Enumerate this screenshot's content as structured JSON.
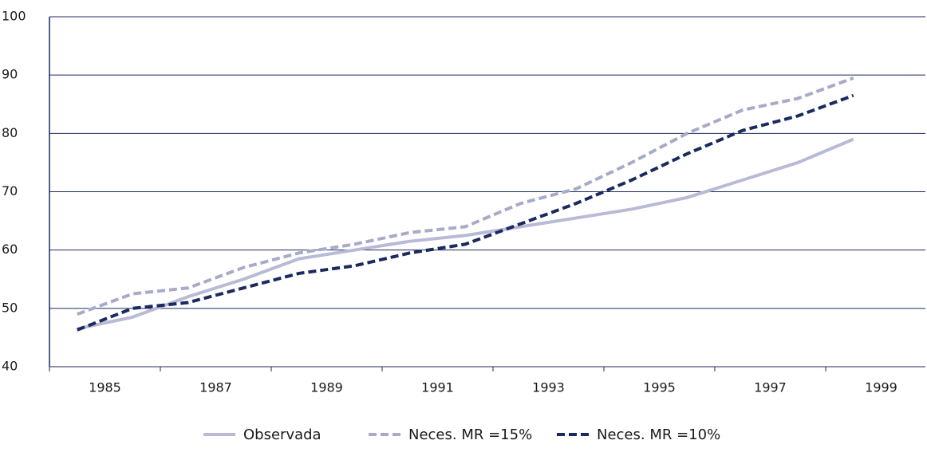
{
  "chart_data": {
    "type": "line",
    "categories": [
      "1985",
      null,
      "1987",
      null,
      "1989",
      null,
      "1991",
      null,
      "1993",
      null,
      "1995",
      null,
      "1997",
      null,
      "1999"
    ],
    "series": [
      {
        "name": "Observada",
        "color": "#b8bad6",
        "dash": false,
        "values": [
          46.5,
          48.5,
          52,
          55,
          58.5,
          60,
          61.5,
          62.5,
          64,
          65.5,
          67,
          69,
          72,
          75,
          79
        ]
      },
      {
        "name": "Neces. MR =15%",
        "color": "#a7aac8",
        "dash": true,
        "values": [
          49,
          52.5,
          53.5,
          57,
          59.5,
          61,
          63,
          64,
          68,
          70.5,
          75,
          80,
          84,
          86,
          89.5
        ]
      },
      {
        "name": "Neces. MR =10%",
        "color": "#1b2a5e",
        "dash": true,
        "values": [
          46.3,
          50,
          51,
          53.5,
          56,
          57.3,
          59.5,
          61,
          64.5,
          68,
          72,
          76.5,
          80.5,
          83,
          86.5
        ]
      }
    ],
    "ylim": [
      40,
      100
    ],
    "yticks": [
      40,
      50,
      60,
      70,
      80,
      90,
      100
    ],
    "grid": true,
    "legend": "bottom"
  }
}
